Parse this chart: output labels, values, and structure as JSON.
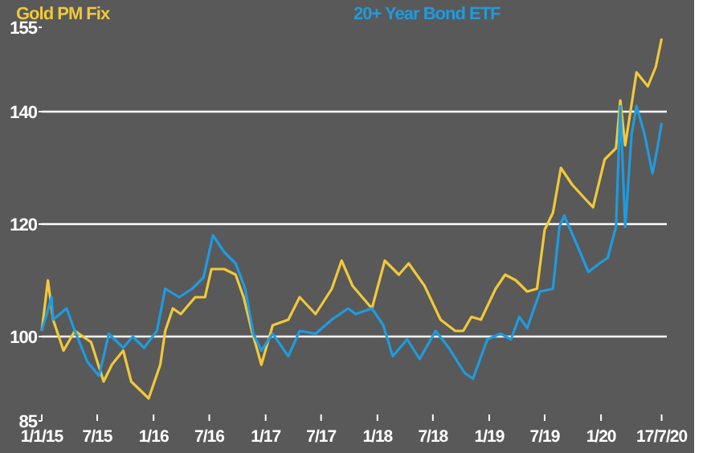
{
  "chart_data": {
    "type": "line",
    "legend": "top",
    "grid": "y",
    "line_style": "solid",
    "marker": "none",
    "xlim": [
      "2015-01-01",
      "2020-10-31"
    ],
    "xticks": [
      {
        "value": "2015-01-01",
        "label": "1/1/15"
      },
      {
        "value": "2015-07-01",
        "label": "7/15"
      },
      {
        "value": "2016-01-01",
        "label": "1/16"
      },
      {
        "value": "2016-07-01",
        "label": "7/16"
      },
      {
        "value": "2017-01-01",
        "label": "1/17"
      },
      {
        "value": "2017-07-01",
        "label": "7/17"
      },
      {
        "value": "2018-01-01",
        "label": "1/18"
      },
      {
        "value": "2018-07-01",
        "label": "7/18"
      },
      {
        "value": "2019-01-01",
        "label": "1/19"
      },
      {
        "value": "2019-07-01",
        "label": "7/19"
      },
      {
        "value": "2020-01-01",
        "label": "1/20"
      },
      {
        "value": "2020-07-17",
        "label": "17/7/20"
      }
    ],
    "ylim": [
      85,
      155
    ],
    "yticks": [
      85,
      100,
      120,
      140,
      155
    ],
    "series": [
      {
        "name": "Gold PM Fix",
        "color": "#f0c93a",
        "x": [
          "2015-01-01",
          "2015-01-21",
          "2015-02-07",
          "2015-03-13",
          "2015-04-19",
          "2015-06-11",
          "2015-07-22",
          "2015-08-18",
          "2015-09-24",
          "2015-10-20",
          "2015-12-16",
          "2016-01-23",
          "2016-02-08",
          "2016-03-04",
          "2016-03-30",
          "2016-05-16",
          "2016-06-17",
          "2016-07-08",
          "2016-08-19",
          "2016-09-25",
          "2016-10-21",
          "2016-11-17",
          "2016-12-18",
          "2017-01-24",
          "2017-03-16",
          "2017-04-22",
          "2017-06-13",
          "2017-08-05",
          "2017-09-06",
          "2017-10-12",
          "2017-12-14",
          "2018-01-25",
          "2018-03-12",
          "2018-04-13",
          "2018-06-04",
          "2018-07-26",
          "2018-09-12",
          "2018-10-08",
          "2018-11-04",
          "2018-12-05",
          "2019-01-22",
          "2019-02-22",
          "2019-03-29",
          "2019-05-05",
          "2019-06-06",
          "2019-07-01",
          "2019-07-28",
          "2019-08-23",
          "2019-09-29",
          "2019-11-10",
          "2019-12-06",
          "2020-01-13",
          "2020-02-19",
          "2020-03-04",
          "2020-03-20",
          "2020-04-26",
          "2020-06-02",
          "2020-06-28",
          "2020-07-17"
        ],
        "values": [
          101,
          110,
          103,
          97.5,
          101,
          99,
          92,
          95,
          97.5,
          92,
          89,
          95,
          101,
          105,
          104,
          107,
          107,
          112,
          112,
          111,
          107,
          101,
          95,
          102,
          103,
          107,
          104,
          108.5,
          113.5,
          109,
          105,
          113.5,
          111,
          113,
          109,
          103,
          101,
          101,
          103.5,
          103,
          108.5,
          111,
          110,
          108,
          108.5,
          119,
          122,
          130,
          127,
          124.5,
          123,
          131.5,
          133.5,
          142,
          134,
          147,
          144.5,
          148,
          153
        ]
      },
      {
        "name": "20+ Year Bond ETF",
        "color": "#1f9be0",
        "x": [
          "2015-01-01",
          "2015-02-02",
          "2015-02-07",
          "2015-03-23",
          "2015-04-19",
          "2015-05-30",
          "2015-07-07",
          "2015-08-08",
          "2015-09-24",
          "2015-10-25",
          "2015-12-01",
          "2016-01-12",
          "2016-02-08",
          "2016-03-25",
          "2016-05-06",
          "2016-06-12",
          "2016-07-13",
          "2016-08-19",
          "2016-09-25",
          "2016-10-26",
          "2016-11-22",
          "2016-12-18",
          "2017-01-24",
          "2017-03-16",
          "2017-04-22",
          "2017-06-13",
          "2017-08-05",
          "2017-09-27",
          "2017-10-22",
          "2017-12-14",
          "2018-01-20",
          "2018-02-20",
          "2018-04-08",
          "2018-05-19",
          "2018-07-10",
          "2018-08-22",
          "2018-10-13",
          "2018-11-09",
          "2018-12-26",
          "2019-02-07",
          "2019-03-13",
          "2019-04-09",
          "2019-05-05",
          "2019-06-16",
          "2019-07-28",
          "2019-08-18",
          "2019-09-03",
          "2019-10-09",
          "2019-11-21",
          "2019-12-27",
          "2020-01-23",
          "2020-02-19",
          "2020-03-04",
          "2020-03-20",
          "2020-04-10",
          "2020-04-26",
          "2020-05-22",
          "2020-06-17",
          "2020-07-03",
          "2020-07-17"
        ],
        "values": [
          101,
          107,
          103,
          105,
          101,
          95.5,
          93,
          100.5,
          98,
          100,
          98,
          101,
          108.5,
          107,
          108.5,
          110.5,
          118,
          115,
          113,
          108.5,
          100.5,
          97.5,
          100.5,
          96.5,
          101,
          100.5,
          103,
          105,
          104,
          105,
          102,
          96.5,
          99.5,
          96,
          101,
          98,
          93.5,
          92.5,
          99.5,
          100.5,
          99.5,
          103.5,
          101.5,
          108,
          108.5,
          119.5,
          121.5,
          117,
          111.5,
          113,
          114,
          119.5,
          141,
          119.5,
          136,
          141,
          136,
          129,
          133.5,
          138
        ]
      }
    ]
  }
}
